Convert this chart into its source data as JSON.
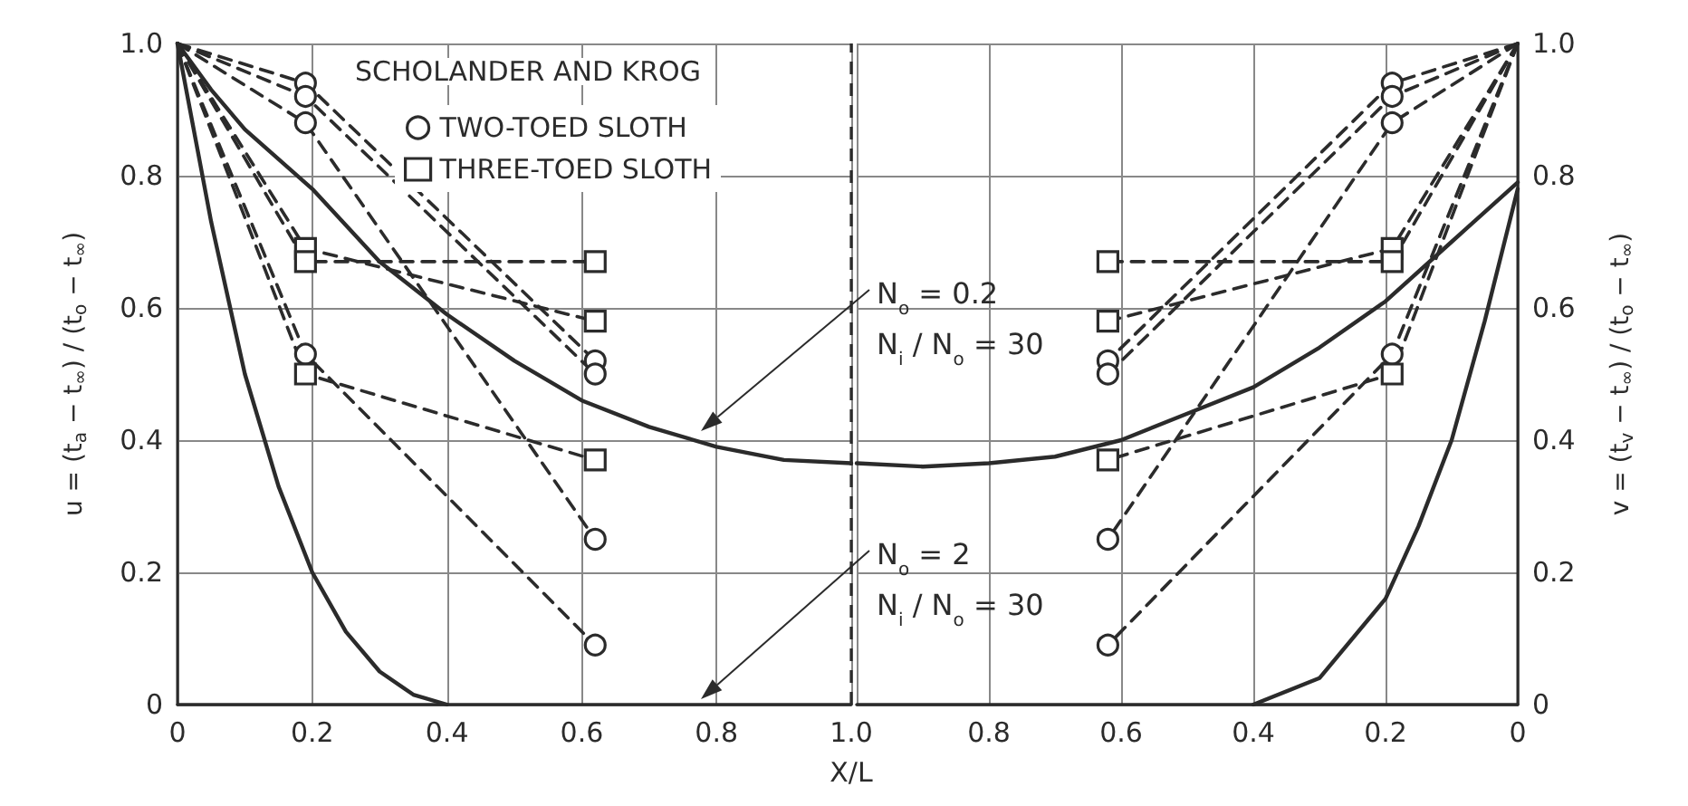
{
  "chart_data": [
    {
      "type": "line",
      "xlabel": "X/L",
      "ylabel": "u = (t$_{a}$ − t$_{∞}$) / (t$_{o}$ − t$_{∞}$)",
      "legend_title": "SCHOLANDER AND KROG",
      "xlim": [
        0,
        1
      ],
      "ylim": [
        0,
        1
      ],
      "xticks": [
        0,
        0.2,
        0.4,
        0.6,
        0.8,
        {
          "value": 1,
          "label": "1.0"
        }
      ],
      "yticks": [
        0,
        0.2,
        0.4,
        0.6,
        0.8,
        {
          "value": 1,
          "label": "1.0"
        }
      ],
      "grid": true,
      "legend": "top",
      "series": [
        {
          "color": "#2b2b2b",
          "line_style": "solid",
          "marker": "none",
          "x": [
            0,
            0.05,
            0.1,
            0.2,
            0.3,
            0.4,
            0.5,
            0.6,
            0.7,
            0.8,
            0.9,
            1.0
          ],
          "values": [
            1.0,
            0.93,
            0.87,
            0.78,
            0.67,
            0.59,
            0.52,
            0.46,
            0.42,
            0.39,
            0.37,
            0.365
          ]
        },
        {
          "color": "#2b2b2b",
          "line_style": "solid",
          "marker": "none",
          "x": [
            0,
            0.05,
            0.1,
            0.15,
            0.2,
            0.25,
            0.3,
            0.35,
            0.4
          ],
          "values": [
            1.0,
            0.73,
            0.5,
            0.33,
            0.2,
            0.11,
            0.05,
            0.015,
            0
          ]
        },
        {
          "name": "TWO-TOED SLOTH",
          "color": "#2b2b2b",
          "line_style": "dashed",
          "marker": "circle",
          "x": [
            0,
            0.19,
            0.62
          ],
          "values": [
            1,
            0.94,
            0.52
          ]
        },
        {
          "color": "#2b2b2b",
          "line_style": "dashed",
          "marker": "circle",
          "x": [
            0,
            0.19,
            0.62
          ],
          "values": [
            1,
            0.92,
            0.5
          ]
        },
        {
          "color": "#2b2b2b",
          "line_style": "dashed",
          "marker": "circle",
          "x": [
            0,
            0.19,
            0.62
          ],
          "values": [
            1,
            0.88,
            0.25
          ]
        },
        {
          "color": "#2b2b2b",
          "line_style": "dashed",
          "marker": "circle",
          "x": [
            0,
            0.19,
            0.62
          ],
          "values": [
            1,
            0.53,
            0.09
          ]
        },
        {
          "name": "THREE-TOED SLOTH",
          "color": "#2b2b2b",
          "line_style": "dashed",
          "marker": "square",
          "x": [
            0,
            0.19,
            0.62
          ],
          "values": [
            1,
            0.69,
            0.58
          ]
        },
        {
          "color": "#2b2b2b",
          "line_style": "dashed",
          "marker": "square",
          "x": [
            0,
            0.19,
            0.62
          ],
          "values": [
            1,
            0.67,
            0.67
          ]
        },
        {
          "color": "#2b2b2b",
          "line_style": "dashed",
          "marker": "square",
          "x": [
            0,
            0.19,
            0.62
          ],
          "values": [
            1,
            0.5,
            0.37
          ]
        }
      ],
      "ref_lines": [
        {
          "axis": "x",
          "value": 1,
          "color": "#2b2b2b",
          "line_style": "dashed"
        }
      ],
      "annotations": [
        "N$_{o}$ = 0.2\nN$_{i}$ / N$_{o}$ = 30",
        "N$_{o}$ = 2\nN$_{i}$ / N$_{o}$ = 30"
      ]
    },
    {
      "type": "line",
      "y2label": "v = (t$_{v}$ − t$_{∞}$) / (t$_{o}$ − t$_{∞}$)",
      "xlim": [
        1,
        0
      ],
      "y2lim": [
        0,
        1
      ],
      "xticks": [
        0.8,
        0.6,
        0.4,
        0.2,
        0
      ],
      "y2ticks": [
        0,
        0.2,
        0.4,
        0.6,
        0.8,
        {
          "value": 1,
          "label": "1.0"
        }
      ],
      "grid": true,
      "series": [
        {
          "color": "#2b2b2b",
          "line_style": "solid",
          "marker": "none",
          "axis": "y2",
          "x": [
            1.0,
            0.9,
            0.8,
            0.7,
            0.6,
            0.5,
            0.4,
            0.3,
            0.2,
            0.1,
            0
          ],
          "values": [
            0.365,
            0.36,
            0.365,
            0.375,
            0.4,
            0.44,
            0.48,
            0.54,
            0.61,
            0.7,
            0.79
          ]
        },
        {
          "color": "#2b2b2b",
          "line_style": "solid",
          "marker": "none",
          "axis": "y2",
          "x": [
            0.4,
            0.3,
            0.2,
            0.15,
            0.1,
            0.05,
            0
          ],
          "values": [
            0,
            0.04,
            0.16,
            0.27,
            0.4,
            0.58,
            0.78
          ]
        },
        {
          "color": "#2b2b2b",
          "line_style": "dashed",
          "marker": "circle",
          "axis": "y2",
          "x": [
            0,
            0.19,
            0.62
          ],
          "values": [
            1,
            0.94,
            0.52
          ]
        },
        {
          "color": "#2b2b2b",
          "line_style": "dashed",
          "marker": "circle",
          "axis": "y2",
          "x": [
            0,
            0.19,
            0.62
          ],
          "values": [
            1,
            0.92,
            0.5
          ]
        },
        {
          "color": "#2b2b2b",
          "line_style": "dashed",
          "marker": "circle",
          "axis": "y2",
          "x": [
            0,
            0.19,
            0.62
          ],
          "values": [
            1,
            0.88,
            0.25
          ]
        },
        {
          "color": "#2b2b2b",
          "line_style": "dashed",
          "marker": "circle",
          "axis": "y2",
          "x": [
            0,
            0.19,
            0.62
          ],
          "values": [
            1,
            0.53,
            0.09
          ]
        },
        {
          "color": "#2b2b2b",
          "line_style": "dashed",
          "marker": "square",
          "axis": "y2",
          "x": [
            0,
            0.19,
            0.62
          ],
          "values": [
            1,
            0.69,
            0.58
          ]
        },
        {
          "color": "#2b2b2b",
          "line_style": "dashed",
          "marker": "square",
          "axis": "y2",
          "x": [
            0,
            0.19,
            0.62
          ],
          "values": [
            1,
            0.67,
            0.67
          ]
        },
        {
          "color": "#2b2b2b",
          "line_style": "dashed",
          "marker": "square",
          "axis": "y2",
          "x": [
            0,
            0.19,
            0.62
          ],
          "values": [
            1,
            0.5,
            0.37
          ]
        }
      ]
    }
  ]
}
